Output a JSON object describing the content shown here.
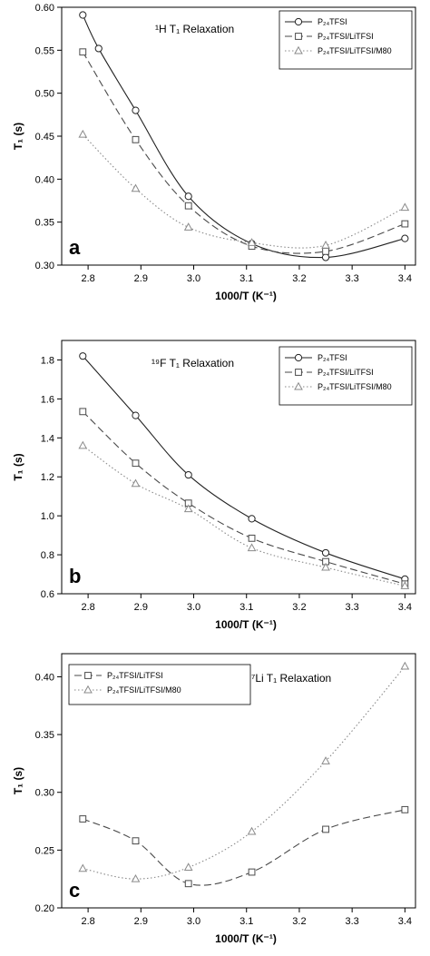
{
  "chart_data": [
    {
      "type": "line",
      "panel_label": "a",
      "annotation": "¹H T₁ Relaxation",
      "xlabel": "1000/T (K⁻¹)",
      "ylabel": "T₁ (s)",
      "xlim": [
        2.75,
        3.42
      ],
      "ylim": [
        0.3,
        0.6
      ],
      "xticks": [
        2.8,
        2.9,
        3.0,
        3.1,
        3.2,
        3.3,
        3.4
      ],
      "xtick_labels": [
        "2.8",
        "2.9",
        "3.0",
        "3.1",
        "3.2",
        "3.3",
        "3.4"
      ],
      "yticks": [
        0.3,
        0.35,
        0.4,
        0.45,
        0.5,
        0.55,
        0.6
      ],
      "ytick_labels": [
        "0.30",
        "0.35",
        "0.40",
        "0.45",
        "0.50",
        "0.55",
        "0.60"
      ],
      "legend_position": "top-right",
      "series": [
        {
          "name": "P₂₄TFSI",
          "style": "solid",
          "marker": "circle",
          "x": [
            2.79,
            2.82,
            2.89,
            2.99,
            3.11,
            3.25,
            3.4
          ],
          "y": [
            0.591,
            0.552,
            0.48,
            0.38,
            0.325,
            0.309,
            0.331
          ]
        },
        {
          "name": "P₂₄TFSI/LiTFSI",
          "style": "dashed",
          "marker": "square",
          "x": [
            2.79,
            2.89,
            2.99,
            3.11,
            3.25,
            3.4
          ],
          "y": [
            0.548,
            0.446,
            0.369,
            0.322,
            0.316,
            0.348
          ]
        },
        {
          "name": "P₂₄TFSI/LiTFSI/M80",
          "style": "dotted",
          "marker": "triangle",
          "x": [
            2.79,
            2.89,
            2.99,
            3.11,
            3.25,
            3.4
          ],
          "y": [
            0.452,
            0.389,
            0.344,
            0.326,
            0.323,
            0.367
          ]
        }
      ]
    },
    {
      "type": "line",
      "panel_label": "b",
      "annotation": "¹⁹F T₁ Relaxation",
      "xlabel": "1000/T (K⁻¹)",
      "ylabel": "T₁ (s)",
      "xlim": [
        2.75,
        3.42
      ],
      "ylim": [
        0.6,
        1.9
      ],
      "xticks": [
        2.8,
        2.9,
        3.0,
        3.1,
        3.2,
        3.3,
        3.4
      ],
      "xtick_labels": [
        "2.8",
        "2.9",
        "3.0",
        "3.1",
        "3.2",
        "3.3",
        "3.4"
      ],
      "yticks": [
        0.6,
        0.8,
        1.0,
        1.2,
        1.4,
        1.6,
        1.8
      ],
      "ytick_labels": [
        "0.6",
        "0.8",
        "1.0",
        "1.2",
        "1.4",
        "1.6",
        "1.8"
      ],
      "legend_position": "top-right",
      "series": [
        {
          "name": "P₂₄TFSI",
          "style": "solid",
          "marker": "circle",
          "x": [
            2.79,
            2.89,
            2.99,
            3.11,
            3.25,
            3.4
          ],
          "y": [
            1.82,
            1.515,
            1.21,
            0.985,
            0.81,
            0.675
          ]
        },
        {
          "name": "P₂₄TFSI/LiTFSI",
          "style": "dashed",
          "marker": "square",
          "x": [
            2.79,
            2.89,
            2.99,
            3.11,
            3.25,
            3.4
          ],
          "y": [
            1.535,
            1.27,
            1.065,
            0.885,
            0.765,
            0.65
          ]
        },
        {
          "name": "P₂₄TFSI/LiTFSI/M80",
          "style": "dotted",
          "marker": "triangle",
          "x": [
            2.79,
            2.89,
            2.99,
            3.11,
            3.25,
            3.4
          ],
          "y": [
            1.36,
            1.165,
            1.035,
            0.835,
            0.735,
            0.64
          ]
        }
      ]
    },
    {
      "type": "line",
      "panel_label": "c",
      "annotation": "⁷Li T₁ Relaxation",
      "xlabel": "1000/T (K⁻¹)",
      "ylabel": "T₁ (s)",
      "xlim": [
        2.75,
        3.42
      ],
      "ylim": [
        0.2,
        0.42
      ],
      "xticks": [
        2.8,
        2.9,
        3.0,
        3.1,
        3.2,
        3.3,
        3.4
      ],
      "xtick_labels": [
        "2.8",
        "2.9",
        "3.0",
        "3.1",
        "3.2",
        "3.3",
        "3.4"
      ],
      "yticks": [
        0.2,
        0.25,
        0.3,
        0.35,
        0.4
      ],
      "ytick_labels": [
        "0.20",
        "0.25",
        "0.30",
        "0.35",
        "0.40"
      ],
      "legend_position": "top-left",
      "series": [
        {
          "name": "P₂₄TFSI/LiTFSI",
          "style": "dashed",
          "marker": "square",
          "x": [
            2.79,
            2.89,
            2.99,
            3.11,
            3.25,
            3.4
          ],
          "y": [
            0.277,
            0.258,
            0.221,
            0.231,
            0.268,
            0.285
          ]
        },
        {
          "name": "P₂₄TFSI/LiTFSI/M80",
          "style": "dotted",
          "marker": "triangle",
          "x": [
            2.79,
            2.89,
            2.99,
            3.11,
            3.25,
            3.4
          ],
          "y": [
            0.234,
            0.225,
            0.235,
            0.266,
            0.327,
            0.409
          ]
        }
      ]
    }
  ]
}
